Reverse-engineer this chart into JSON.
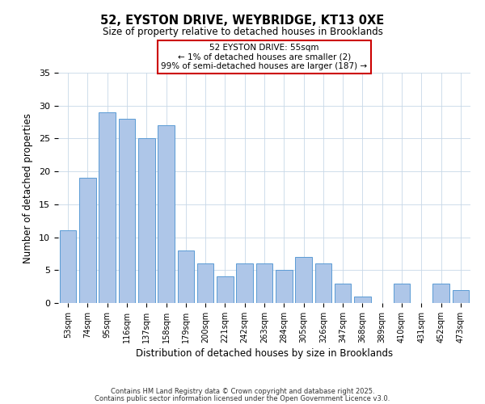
{
  "title_line1": "52, EYSTON DRIVE, WEYBRIDGE, KT13 0XE",
  "title_line2": "Size of property relative to detached houses in Brooklands",
  "xlabel": "Distribution of detached houses by size in Brooklands",
  "ylabel": "Number of detached properties",
  "categories": [
    "53sqm",
    "74sqm",
    "95sqm",
    "116sqm",
    "137sqm",
    "158sqm",
    "179sqm",
    "200sqm",
    "221sqm",
    "242sqm",
    "263sqm",
    "284sqm",
    "305sqm",
    "326sqm",
    "347sqm",
    "368sqm",
    "389sqm",
    "410sqm",
    "431sqm",
    "452sqm",
    "473sqm"
  ],
  "values": [
    11,
    19,
    29,
    28,
    25,
    27,
    8,
    6,
    4,
    6,
    6,
    5,
    7,
    6,
    3,
    1,
    0,
    3,
    0,
    3,
    2
  ],
  "bar_color": "#aec6e8",
  "bar_edgecolor": "#5b9bd5",
  "ylim": [
    0,
    35
  ],
  "yticks": [
    0,
    5,
    10,
    15,
    20,
    25,
    30,
    35
  ],
  "annotation_box_text": "52 EYSTON DRIVE: 55sqm\n← 1% of detached houses are smaller (2)\n99% of semi-detached houses are larger (187) →",
  "annotation_box_edgecolor": "#cc0000",
  "footnote1": "Contains HM Land Registry data © Crown copyright and database right 2025.",
  "footnote2": "Contains public sector information licensed under the Open Government Licence v3.0.",
  "background_color": "#ffffff",
  "grid_color": "#c8d8e8"
}
